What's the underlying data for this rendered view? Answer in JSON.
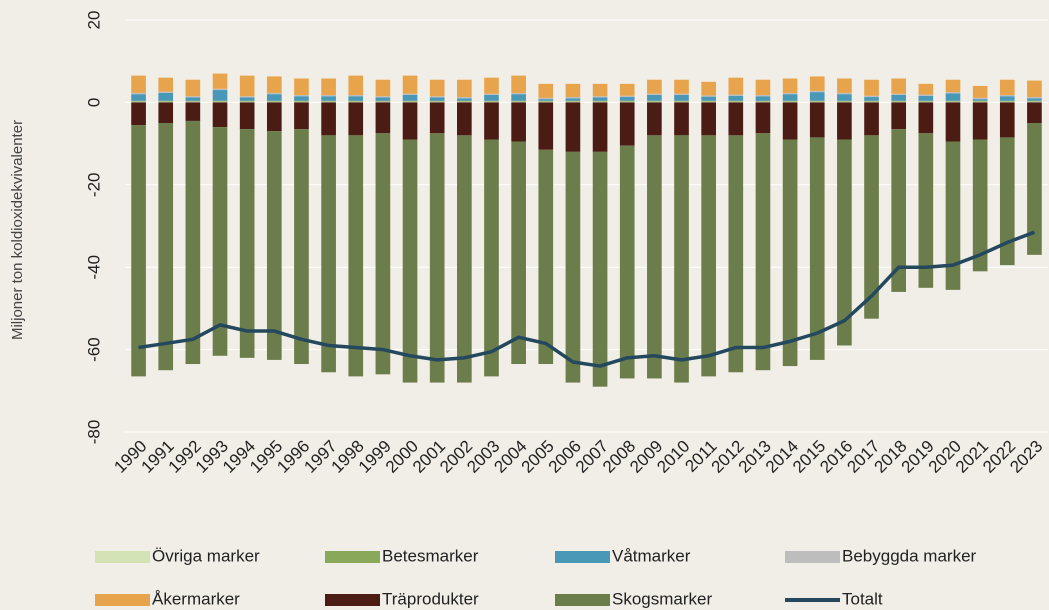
{
  "chart_data": {
    "type": "bar",
    "y_label": "Miljoner ton koldioxidekvivalenter",
    "categories": [
      "1990",
      "1991",
      "1992",
      "1993",
      "1994",
      "1995",
      "1996",
      "1997",
      "1998",
      "1999",
      "2000",
      "2001",
      "2002",
      "2003",
      "2004",
      "2005",
      "2006",
      "2007",
      "2008",
      "2009",
      "2010",
      "2011",
      "2012",
      "2013",
      "2014",
      "2015",
      "2016",
      "2017",
      "2018",
      "2019",
      "2020",
      "2021",
      "2022",
      "2023"
    ],
    "ylim": [
      -80,
      20
    ],
    "yticks": [
      20,
      0,
      -20,
      -40,
      -60,
      -80
    ],
    "grid": true,
    "series": [
      {
        "name": "Övriga marker",
        "color": "#d4e3b5",
        "values": [
          0.2,
          0.2,
          0.2,
          0.2,
          0.2,
          0.2,
          0.2,
          0.2,
          0.2,
          0.2,
          0.2,
          0.2,
          0.2,
          0.2,
          0.2,
          0.2,
          0.2,
          0.2,
          0.2,
          0.2,
          0.2,
          0.2,
          0.2,
          0.2,
          0.2,
          0.2,
          0.2,
          0.2,
          0.2,
          0.2,
          0.2,
          0.2,
          0.2,
          0.2
        ]
      },
      {
        "name": "Betesmarker",
        "color": "#8aa85a",
        "values": [
          0.2,
          0.2,
          0.2,
          0.2,
          0.2,
          0.2,
          0.2,
          0.2,
          0.2,
          0.2,
          0.2,
          0.2,
          0.2,
          0.2,
          0.2,
          0.2,
          0.2,
          0.2,
          0.2,
          0.2,
          0.2,
          0.2,
          0.2,
          0.2,
          0.2,
          0.2,
          0.2,
          0.2,
          0.2,
          0.2,
          0.2,
          0.2,
          0.2,
          0.2
        ]
      },
      {
        "name": "Våtmarker",
        "color": "#4a98b8",
        "values": [
          1.6,
          1.9,
          0.8,
          2.6,
          0.8,
          1.6,
          1.1,
          1.1,
          1.1,
          0.8,
          1.4,
          0.8,
          0.6,
          1.4,
          1.6,
          0.4,
          0.6,
          0.8,
          0.9,
          1.4,
          1.4,
          1.0,
          1.2,
          1.1,
          1.6,
          2.1,
          1.6,
          0.9,
          1.4,
          1.2,
          1.8,
          0.4,
          1.1,
          0.6
        ]
      },
      {
        "name": "Bebyggda marker",
        "color": "#bdbdbd",
        "values": [
          0.3,
          0.3,
          0.3,
          0.3,
          0.3,
          0.3,
          0.3,
          0.3,
          0.3,
          0.3,
          0.3,
          0.3,
          0.3,
          0.3,
          0.3,
          0.3,
          0.3,
          0.3,
          0.3,
          0.3,
          0.3,
          0.3,
          0.3,
          0.3,
          0.3,
          0.3,
          0.3,
          0.3,
          0.3,
          0.3,
          0.3,
          0.3,
          0.3,
          0.3
        ]
      },
      {
        "name": "Åkermarker",
        "color": "#e8a44c",
        "values": [
          4.2,
          3.4,
          4.0,
          3.7,
          5.0,
          4.0,
          4.0,
          4.0,
          4.7,
          4.0,
          4.4,
          4.0,
          4.2,
          3.9,
          4.2,
          3.4,
          3.2,
          3.0,
          2.9,
          3.4,
          3.4,
          3.3,
          4.1,
          3.7,
          3.5,
          3.5,
          3.5,
          3.9,
          3.7,
          2.6,
          3.0,
          2.9,
          3.7,
          4.0
        ]
      },
      {
        "name": "Träprodukter",
        "color": "#4a1c14",
        "values": [
          -5.5,
          -5,
          -4.5,
          -6,
          -6.5,
          -7,
          -6.5,
          -8,
          -8,
          -7.5,
          -9,
          -7.5,
          -8,
          -9,
          -9.5,
          -11.5,
          -12,
          -12,
          -10.5,
          -8,
          -8,
          -8,
          -8,
          -7.5,
          -9,
          -8.5,
          -9,
          -8,
          -6.5,
          -7.5,
          -9.5,
          -9,
          -8.5,
          -5
        ]
      },
      {
        "name": "Skogsmarker",
        "color": "#6b7d4a",
        "values": [
          -61,
          -60,
          -59,
          -55.5,
          -55.5,
          -55.5,
          -57,
          -57.5,
          -58.5,
          -58.5,
          -59,
          -60.5,
          -60,
          -57.5,
          -54,
          -52,
          -56,
          -57,
          -56.5,
          -59,
          -60,
          -58.5,
          -57.5,
          -57.5,
          -55,
          -54,
          -50,
          -44.5,
          -39.5,
          -37.5,
          -36,
          -32,
          -31,
          -32
        ]
      },
      {
        "name": "Totalt",
        "type": "line",
        "color": "#24485e",
        "values": [
          -59.5,
          -58.5,
          -57.5,
          -54,
          -55.5,
          -55.5,
          -57.5,
          -59,
          -59.5,
          -60,
          -61.5,
          -62.5,
          -62,
          -60.5,
          -57,
          -58.5,
          -63,
          -64,
          -62,
          -61.5,
          -62.5,
          -61.5,
          -59.5,
          -59.5,
          -58,
          -56,
          -53,
          -47,
          -40,
          -40,
          -39.5,
          -37,
          -34,
          -31.5
        ]
      }
    ]
  }
}
